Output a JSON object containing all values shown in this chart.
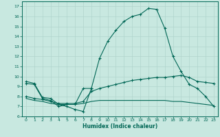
{
  "title": "",
  "xlabel": "Humidex (Indice chaleur)",
  "xlim": [
    -0.5,
    23.5
  ],
  "ylim": [
    6,
    17.5
  ],
  "yticks": [
    6,
    7,
    8,
    9,
    10,
    11,
    12,
    13,
    14,
    15,
    16,
    17
  ],
  "xticks": [
    0,
    1,
    2,
    3,
    4,
    5,
    6,
    7,
    8,
    9,
    10,
    11,
    12,
    13,
    14,
    15,
    16,
    17,
    18,
    19,
    20,
    21,
    22,
    23
  ],
  "bg_color": "#c8e8e0",
  "grid_color": "#b0d4cc",
  "line_color": "#006655",
  "line1_x": [
    0,
    1,
    2,
    3,
    4,
    5,
    6,
    7,
    8,
    9,
    10,
    11,
    12,
    13,
    14,
    15,
    16,
    17,
    18,
    19,
    20,
    21,
    22,
    23
  ],
  "line1_y": [
    9.5,
    9.3,
    7.9,
    7.8,
    7.2,
    7.0,
    6.7,
    6.5,
    8.8,
    11.8,
    13.5,
    14.6,
    15.5,
    16.0,
    16.2,
    16.8,
    16.7,
    14.8,
    12.0,
    10.5,
    9.2,
    8.8,
    8.0,
    7.0
  ],
  "line2_x": [
    0,
    1,
    2,
    3,
    4,
    5,
    6,
    7,
    8
  ],
  "line2_y": [
    9.3,
    9.2,
    7.8,
    7.6,
    7.0,
    7.2,
    7.2,
    8.8,
    8.8
  ],
  "line3_x": [
    0,
    1,
    2,
    3,
    4,
    5,
    6,
    7,
    8,
    9,
    10,
    11,
    12,
    13,
    14,
    15,
    16,
    17,
    18,
    19,
    20,
    21,
    22,
    23
  ],
  "line3_y": [
    8.0,
    7.8,
    7.7,
    7.5,
    7.3,
    7.3,
    7.3,
    7.5,
    8.5,
    8.8,
    9.0,
    9.2,
    9.4,
    9.6,
    9.7,
    9.8,
    9.9,
    9.9,
    10.0,
    10.1,
    9.9,
    9.5,
    9.4,
    9.3
  ],
  "line4_x": [
    0,
    1,
    2,
    3,
    4,
    5,
    6,
    7,
    8,
    9,
    10,
    11,
    12,
    13,
    14,
    15,
    16,
    17,
    18,
    19,
    20,
    21,
    22,
    23
  ],
  "line4_y": [
    7.8,
    7.6,
    7.5,
    7.3,
    7.2,
    7.2,
    7.2,
    7.3,
    7.5,
    7.6,
    7.6,
    7.6,
    7.6,
    7.6,
    7.6,
    7.6,
    7.6,
    7.6,
    7.5,
    7.5,
    7.4,
    7.3,
    7.2,
    7.1
  ]
}
